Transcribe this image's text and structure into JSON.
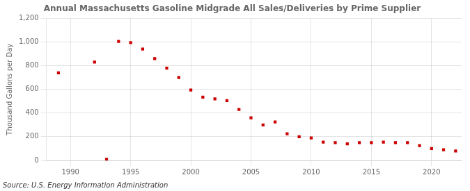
{
  "chart_data": {
    "type": "scatter",
    "title": "Annual Massachusetts Gasoline Midgrade All Sales/Deliveries by Prime Supplier",
    "ylabel": "Thousand Gallons per Day",
    "annotation": "Source: U.S. Energy Information Administration",
    "x": [
      1989,
      1992,
      1993,
      1994,
      1995,
      1996,
      1997,
      1998,
      1999,
      2000,
      2001,
      2002,
      2003,
      2004,
      2005,
      2006,
      2007,
      2008,
      2009,
      2010,
      2011,
      2012,
      2013,
      2014,
      2015,
      2016,
      2017,
      2018,
      2019,
      2020,
      2021,
      2022
    ],
    "values": [
      740,
      830,
      10,
      1005,
      995,
      940,
      860,
      780,
      700,
      595,
      535,
      520,
      505,
      430,
      360,
      300,
      325,
      225,
      200,
      190,
      155,
      150,
      140,
      150,
      150,
      155,
      150,
      150,
      125,
      100,
      90,
      80
    ],
    "color": "#cc0000",
    "marker": "square",
    "xlim": [
      1988.0,
      2022.5
    ],
    "xticks": [
      1990,
      1995,
      2000,
      2005,
      2010,
      2015,
      2020
    ],
    "ylim": [
      0,
      1200
    ],
    "yticks": [
      0,
      200,
      400,
      600,
      {
        "value": 800,
        "label": "800"
      },
      {
        "value": 1000,
        "label": "1,000"
      },
      {
        "value": 1200,
        "label": "1,200"
      }
    ],
    "grid": true
  }
}
